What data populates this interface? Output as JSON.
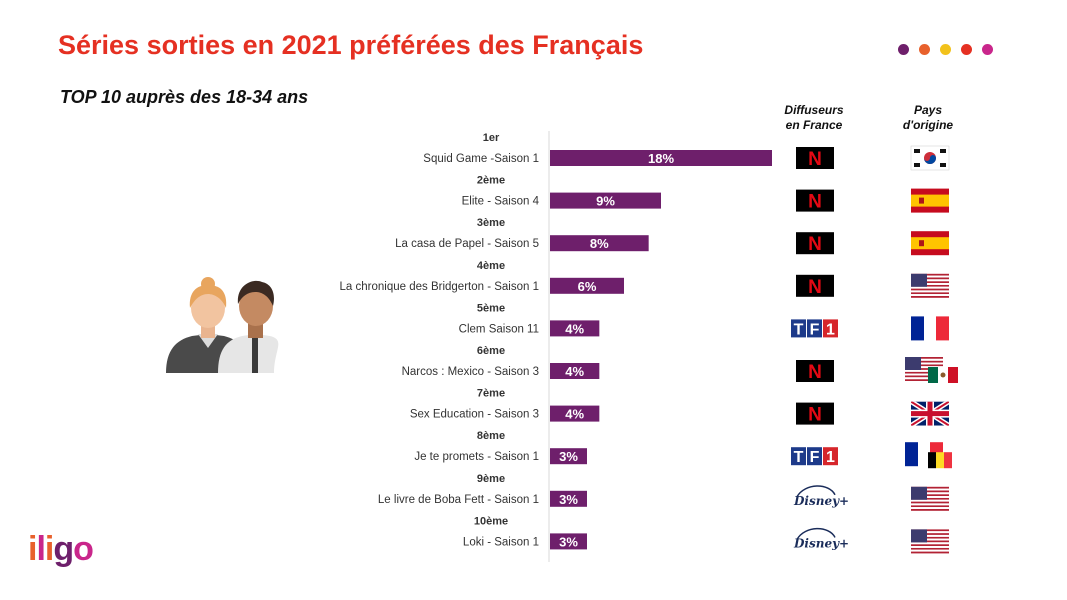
{
  "title": "Séries sorties en 2021 préférées des Français",
  "subtitle": "TOP 10 auprès des 18-34 ans",
  "header_dots": [
    "#6e1f6b",
    "#e8612c",
    "#f2c21b",
    "#e53022",
    "#c9268b"
  ],
  "columns": {
    "broadcaster_line1": "Diffuseurs",
    "broadcaster_line2": "en France",
    "origin_line1": "Pays",
    "origin_line2": "d'origine"
  },
  "bar_color": "#6e1f6b",
  "logo": {
    "letters": [
      "i",
      "l",
      "i",
      "g",
      "o"
    ],
    "colors": [
      "#e8612c",
      "#c9268b",
      "#e8612c",
      "#6e1f6b",
      "#c9268b"
    ]
  },
  "chart_data": {
    "type": "bar",
    "orientation": "horizontal",
    "xlim": [
      0,
      18
    ],
    "rows": [
      {
        "rank": "1er",
        "category": "Squid Game -Saison 1",
        "value": 18,
        "label": "18%",
        "broadcaster": "netflix-icon",
        "origin": [
          "south-korea-flag-icon"
        ]
      },
      {
        "rank": "2ème",
        "category": "Elite - Saison 4",
        "value": 9,
        "label": "9%",
        "broadcaster": "netflix-icon",
        "origin": [
          "spain-flag-icon"
        ]
      },
      {
        "rank": "3ème",
        "category": "La casa de Papel - Saison 5",
        "value": 8,
        "label": "8%",
        "broadcaster": "netflix-icon",
        "origin": [
          "spain-flag-icon"
        ]
      },
      {
        "rank": "4ème",
        "category": "La chronique des Bridgerton - Saison 1",
        "value": 6,
        "label": "6%",
        "broadcaster": "netflix-icon",
        "origin": [
          "usa-flag-icon"
        ]
      },
      {
        "rank": "5ème",
        "category": "Clem Saison 11",
        "value": 4,
        "label": "4%",
        "broadcaster": "tf1-icon",
        "origin": [
          "france-flag-icon"
        ]
      },
      {
        "rank": "6ème",
        "category": "Narcos : Mexico - Saison 3",
        "value": 4,
        "label": "4%",
        "broadcaster": "netflix-icon",
        "origin": [
          "usa-flag-icon",
          "mexico-flag-icon"
        ]
      },
      {
        "rank": "7ème",
        "category": "Sex Education - Saison 3",
        "value": 4,
        "label": "4%",
        "broadcaster": "netflix-icon",
        "origin": [
          "uk-flag-icon"
        ]
      },
      {
        "rank": "8ème",
        "category": "Je te promets - Saison 1",
        "value": 3,
        "label": "3%",
        "broadcaster": "tf1-icon",
        "origin": [
          "france-flag-icon",
          "belgium-flag-icon"
        ]
      },
      {
        "rank": "9ème",
        "category": "Le livre de Boba Fett - Saison 1",
        "value": 3,
        "label": "3%",
        "broadcaster": "disney-plus-icon",
        "origin": [
          "usa-flag-icon"
        ]
      },
      {
        "rank": "10ème",
        "category": "Loki - Saison 1",
        "value": 3,
        "label": "3%",
        "broadcaster": "disney-plus-icon",
        "origin": [
          "usa-flag-icon"
        ]
      }
    ]
  }
}
